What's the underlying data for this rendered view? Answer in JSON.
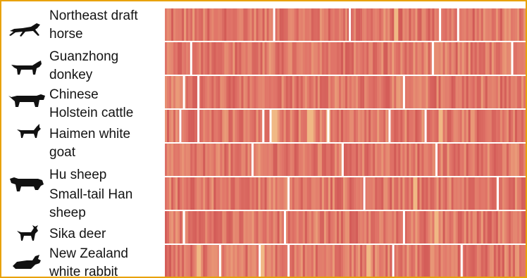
{
  "chart_data": {
    "type": "heatmap",
    "title": "",
    "xlabel": "",
    "ylabel": "",
    "rows": [
      {
        "label_lines": [
          "Northeast draft",
          "horse"
        ],
        "icon": "horse-icon",
        "white_gaps": [
          0.3,
          0.51,
          0.76,
          0.81
        ],
        "light_cells": [
          0.64
        ]
      },
      {
        "label_lines": [
          "Guanzhong",
          "donkey"
        ],
        "icon": "donkey-icon",
        "white_gaps": [
          0.07,
          0.74,
          0.96
        ],
        "light_cells": []
      },
      {
        "label_lines": [
          "Chinese",
          "Holstein cattle"
        ],
        "icon": "cattle-icon",
        "white_gaps": [
          0.05,
          0.09,
          0.66
        ],
        "light_cells": []
      },
      {
        "label_lines": [
          "Haimen white",
          "goat"
        ],
        "icon": "goat-icon",
        "white_gaps": [
          0.04,
          0.09,
          0.27,
          0.29,
          0.45,
          0.62,
          0.72
        ],
        "light_cells": [
          0.4,
          0.45,
          0.76,
          0.3
        ]
      },
      {
        "label_lines": [
          "Hu sheep"
        ],
        "icon": "sheep-icon",
        "white_gaps": [
          0.24,
          0.49,
          0.75
        ],
        "light_cells": []
      },
      {
        "label_lines": [
          "Small-tail Han",
          "sheep"
        ],
        "icon": "sheep-icon",
        "white_gaps": [
          0.34,
          0.55,
          0.92
        ],
        "light_cells": [
          0.69
        ]
      },
      {
        "label_lines": [
          "Sika deer"
        ],
        "icon": "deer-icon",
        "white_gaps": [
          0.05,
          0.33,
          0.66
        ],
        "light_cells": [
          0.75
        ]
      },
      {
        "label_lines": [
          "New Zealand",
          "white rabbit"
        ],
        "icon": "rabbit-icon",
        "white_gaps": [
          0.15,
          0.26,
          0.34,
          0.63,
          0.82
        ],
        "light_cells": [
          0.09,
          0.27,
          0.56
        ]
      }
    ],
    "colors": {
      "base": "#e07468",
      "light": "#f0b884",
      "pale": "#f6dcc2",
      "gap": "#ffffff",
      "frame": "#e8a20a"
    }
  }
}
